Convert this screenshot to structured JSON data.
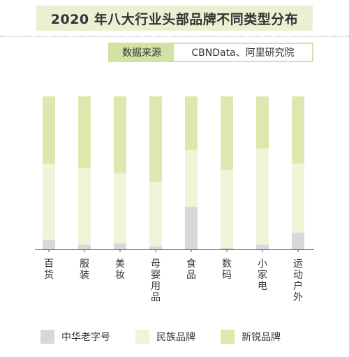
{
  "header": {
    "title": "2020 年八大行业头部品牌不同类型分布",
    "source_label": "数据来源",
    "source_value": "CBNData、阿里研究院"
  },
  "colors": {
    "中华老字号": "#d8d8d8",
    "民族品牌": "#f0f5da",
    "新锐品牌": "#dce8ad"
  },
  "chart_data": {
    "type": "bar",
    "stacked": true,
    "categories": [
      "百货",
      "服装",
      "美妆",
      "母婴用品",
      "食品",
      "数码",
      "小家电",
      "运动户外"
    ],
    "series": [
      {
        "name": "中华老字号",
        "values": [
          6,
          3,
          4,
          2,
          28,
          1,
          3,
          11
        ]
      },
      {
        "name": "民族品牌",
        "values": [
          50,
          50,
          46,
          42,
          37,
          51,
          63,
          45
        ]
      },
      {
        "name": "新锐品牌",
        "values": [
          44,
          47,
          50,
          56,
          35,
          48,
          34,
          44
        ]
      }
    ],
    "ylim": [
      0,
      100
    ],
    "legend_position": "bottom"
  }
}
